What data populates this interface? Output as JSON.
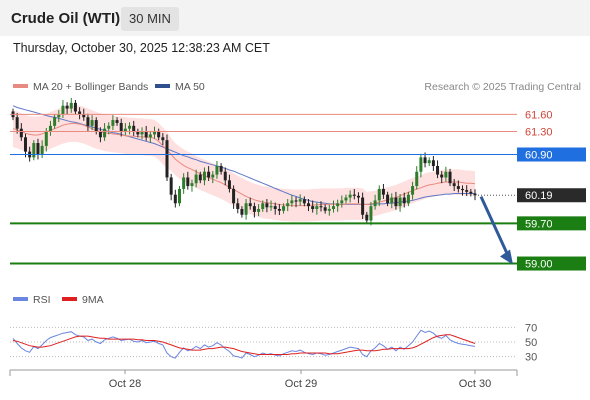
{
  "header": {
    "title": "Crude Oil (WTI)",
    "timeframe": "30 MIN",
    "datetime": "Thursday, October 30, 2025 12:38:23 AM CET"
  },
  "legend": {
    "ma20_label": "MA 20 + Bollinger Bands",
    "ma50_label": "MA 50",
    "copyright": "Research © 2025 Trading Central",
    "rsi_label": "RSI",
    "rsi_ma_label": "9MA"
  },
  "colors": {
    "bullish": "#2d7d2d",
    "bearish": "#222222",
    "ma20": "#e98a80",
    "bollinger_fill": "#fde0df",
    "ma50": "#6078c8",
    "resistance": "#e88a80",
    "pivot": "#1f6fe0",
    "support": "#1b7e12",
    "current": "#2a2a2a",
    "arrow": "#2f5a9a",
    "rsi": "#6a86e0",
    "rsi_ma": "#e02020"
  },
  "chart_data": [
    {
      "type": "line",
      "title": "",
      "subtitle": "",
      "x_ticks": [
        "Oct 28",
        "Oct 29",
        "Oct 30"
      ],
      "ylim": [
        58.8,
        61.85
      ],
      "levels": [
        {
          "value": 61.6,
          "label": "61.60",
          "kind": "resistance"
        },
        {
          "value": 61.3,
          "label": "61.30",
          "kind": "resistance"
        },
        {
          "value": 60.9,
          "label": "60.90",
          "kind": "pivot"
        },
        {
          "value": 60.19,
          "label": "60.19",
          "kind": "current"
        },
        {
          "value": 59.7,
          "label": "59.70",
          "kind": "support"
        },
        {
          "value": 59.0,
          "label": "59.00",
          "kind": "support"
        }
      ],
      "arrow": {
        "from_price": 60.2,
        "to_price": 59.0
      },
      "candles_close": [
        61.55,
        61.35,
        61.2,
        60.95,
        60.85,
        61.1,
        60.9,
        61.05,
        61.3,
        61.4,
        61.55,
        61.6,
        61.75,
        61.7,
        61.8,
        61.65,
        61.6,
        61.55,
        61.4,
        61.5,
        61.3,
        61.2,
        61.35,
        61.4,
        61.5,
        61.45,
        61.3,
        61.35,
        61.4,
        61.3,
        61.25,
        61.3,
        61.2,
        61.25,
        61.3,
        61.2,
        61.15,
        60.5,
        60.2,
        60.05,
        60.3,
        60.5,
        60.35,
        60.4,
        60.55,
        60.45,
        60.6,
        60.5,
        60.55,
        60.7,
        60.6,
        60.45,
        60.3,
        60.05,
        59.95,
        59.85,
        60.05,
        60.0,
        59.9,
        59.95,
        60.05,
        59.98,
        60.0,
        59.95,
        59.92,
        60.0,
        60.05,
        60.1,
        60.08,
        60.12,
        60.05,
        60.0,
        59.95,
        60.0,
        59.98,
        59.92,
        59.95,
        60.0,
        60.05,
        60.1,
        60.15,
        60.2,
        60.18,
        60.15,
        59.85,
        59.75,
        60.0,
        60.1,
        60.3,
        60.2,
        60.05,
        60.15,
        60.0,
        60.15,
        60.05,
        60.2,
        60.35,
        60.6,
        60.85,
        60.75,
        60.8,
        60.7,
        60.55,
        60.5,
        60.6,
        60.4,
        60.35,
        60.3,
        60.28,
        60.25,
        60.22,
        60.19
      ],
      "ma20": [
        61.35,
        61.33,
        61.3,
        61.27,
        61.25,
        61.24,
        61.24,
        61.26,
        61.29,
        61.32,
        61.35,
        61.38,
        61.41,
        61.43,
        61.44,
        61.44,
        61.43,
        61.41,
        61.38,
        61.35,
        61.32,
        61.3,
        61.28,
        61.27,
        61.26,
        61.25,
        61.24,
        61.23,
        61.22,
        61.22,
        61.21,
        61.21,
        61.2,
        61.2,
        61.18,
        61.13,
        61.05,
        60.98,
        60.9,
        60.82,
        60.76,
        60.71,
        60.67,
        60.64,
        60.6,
        60.56,
        60.53,
        60.5,
        60.47,
        60.44,
        60.41,
        60.37,
        60.33,
        60.29,
        60.25,
        60.21,
        60.17,
        60.14,
        60.11,
        60.09,
        60.07,
        60.06,
        60.05,
        60.04,
        60.03,
        60.02,
        60.02,
        60.01,
        60.01,
        60.01,
        60.01,
        60.01,
        60.02,
        60.02,
        60.03,
        60.03,
        60.03,
        60.03,
        60.03,
        60.03,
        60.04,
        60.04,
        60.04,
        60.04,
        60.03,
        60.03,
        60.04,
        60.05,
        60.07,
        60.09,
        60.11,
        60.13,
        60.15,
        60.18,
        60.21,
        60.24,
        60.27,
        60.3,
        60.32,
        60.35,
        60.37,
        60.38,
        60.4,
        60.41,
        60.42,
        60.42,
        60.42,
        60.42,
        60.41,
        60.4,
        60.4,
        60.39
      ],
      "ma50": [
        61.75,
        61.72,
        61.7,
        61.68,
        61.66,
        61.64,
        61.62,
        61.6,
        61.58,
        61.56,
        61.55,
        61.53,
        61.51,
        61.49,
        61.47,
        61.46,
        61.44,
        61.42,
        61.4,
        61.38,
        61.36,
        61.34,
        61.32,
        61.3,
        61.28,
        61.27,
        61.25,
        61.23,
        61.21,
        61.19,
        61.17,
        61.15,
        61.13,
        61.11,
        61.09,
        61.06,
        61.03,
        61.0,
        60.97,
        60.94,
        60.91,
        60.88,
        60.86,
        60.83,
        60.81,
        60.78,
        60.76,
        60.74,
        60.72,
        60.7,
        60.68,
        60.66,
        60.63,
        60.61,
        60.58,
        60.55,
        60.52,
        60.49,
        60.46,
        60.43,
        60.4,
        60.37,
        60.34,
        60.31,
        60.28,
        60.25,
        60.22,
        60.19,
        60.17,
        60.14,
        60.12,
        60.1,
        60.08,
        60.07,
        60.06,
        60.05,
        60.04,
        60.04,
        60.03,
        60.03,
        60.03,
        60.03,
        60.03,
        60.03,
        60.03,
        60.03,
        60.03,
        60.04,
        60.04,
        60.04,
        60.05,
        60.05,
        60.06,
        60.07,
        60.08,
        60.09,
        60.1,
        60.12,
        60.14,
        60.16,
        60.17,
        60.18,
        60.19,
        60.2,
        60.21,
        60.21,
        60.22,
        60.22,
        60.22,
        60.22,
        60.22,
        60.22
      ]
    },
    {
      "type": "line",
      "title": "",
      "ylim": [
        20,
        80
      ],
      "y_ticks": [
        {
          "value": 70,
          "label": "70"
        },
        {
          "value": 50,
          "label": "50"
        },
        {
          "value": 30,
          "label": "30"
        }
      ],
      "rsi": [
        55,
        48,
        42,
        38,
        36,
        44,
        41,
        46,
        52,
        56,
        58,
        60,
        62,
        63,
        64,
        60,
        58,
        57,
        52,
        54,
        50,
        48,
        53,
        55,
        57,
        55,
        52,
        53,
        54,
        51,
        50,
        52,
        49,
        50,
        51,
        48,
        46,
        35,
        30,
        28,
        36,
        42,
        38,
        40,
        44,
        41,
        46,
        43,
        45,
        49,
        46,
        41,
        37,
        31,
        30,
        28,
        35,
        33,
        30,
        32,
        35,
        33,
        34,
        32,
        31,
        34,
        36,
        38,
        37,
        39,
        36,
        34,
        33,
        35,
        34,
        32,
        33,
        35,
        37,
        39,
        41,
        43,
        42,
        41,
        33,
        30,
        38,
        42,
        48,
        45,
        40,
        43,
        38,
        43,
        40,
        45,
        50,
        58,
        66,
        63,
        65,
        62,
        57,
        55,
        59,
        53,
        50,
        48,
        47,
        46,
        45,
        44
      ],
      "rsi_ma": [
        52,
        51,
        49,
        47,
        45,
        44,
        43,
        43,
        44,
        45,
        47,
        49,
        51,
        53,
        55,
        57,
        58,
        58,
        58,
        57,
        56,
        55,
        55,
        54,
        54,
        54,
        54,
        54,
        54,
        54,
        53,
        53,
        52,
        52,
        52,
        51,
        50,
        48,
        46,
        44,
        42,
        41,
        40,
        39,
        39,
        39,
        40,
        41,
        41,
        42,
        43,
        43,
        42,
        41,
        39,
        37,
        36,
        35,
        34,
        33,
        33,
        33,
        33,
        33,
        33,
        33,
        33,
        34,
        34,
        35,
        35,
        35,
        35,
        35,
        35,
        35,
        34,
        34,
        34,
        35,
        36,
        37,
        38,
        39,
        39,
        38,
        38,
        38,
        39,
        40,
        40,
        41,
        41,
        41,
        41,
        41,
        42,
        44,
        47,
        50,
        53,
        56,
        58,
        59,
        60,
        60,
        58,
        56,
        54,
        52,
        50,
        48
      ]
    }
  ]
}
